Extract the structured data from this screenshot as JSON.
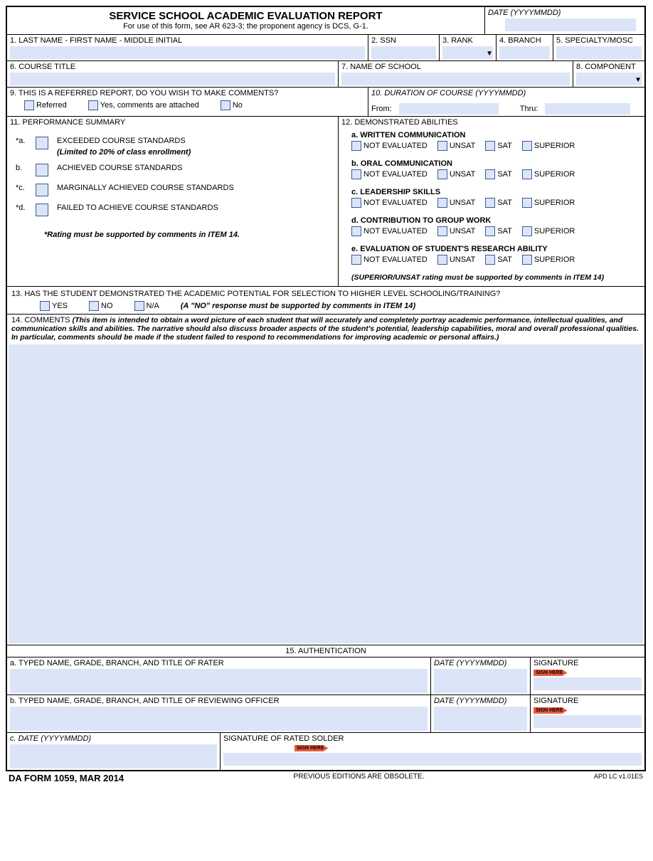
{
  "header": {
    "title": "SERVICE SCHOOL ACADEMIC EVALUATION REPORT",
    "subtitle": "For use of this form, see AR 623-3; the proponent agency is DCS, G-1.",
    "date_label": "DATE (YYYYMMDD)"
  },
  "f1": {
    "label": "1. LAST NAME - FIRST NAME - MIDDLE INITIAL"
  },
  "f2": {
    "label": "2. SSN"
  },
  "f3": {
    "label": "3. RANK"
  },
  "f4": {
    "label": "4. BRANCH"
  },
  "f5": {
    "label": "5. SPECIALTY/MOSC"
  },
  "f6": {
    "label": "6. COURSE TITLE"
  },
  "f7": {
    "label": "7. NAME OF SCHOOL"
  },
  "f8": {
    "label": "8. COMPONENT"
  },
  "f9": {
    "label": "9. THIS IS A REFERRED REPORT, DO YOU WISH TO MAKE COMMENTS?",
    "opt1": "Referred",
    "opt2": "Yes, comments are attached",
    "opt3": "No"
  },
  "f10": {
    "label": "10. DURATION OF COURSE (YYYYMMDD)",
    "from": "From:",
    "thru": "Thru:"
  },
  "f11": {
    "label": "11. PERFORMANCE SUMMARY",
    "a_marker": "*a.",
    "a_text": "EXCEEDED COURSE STANDARDS",
    "a_note": "(Limited to 20% of class enrollment)",
    "b_marker": "b.",
    "b_text": "ACHIEVED COURSE STANDARDS",
    "c_marker": "*c.",
    "c_text": "MARGINALLY ACHIEVED COURSE STANDARDS",
    "d_marker": "*d.",
    "d_text": "FAILED TO ACHIEVE COURSE STANDARDS",
    "note": "*Rating must be supported by comments in ITEM 14."
  },
  "f12": {
    "label": "12. DEMONSTRATED ABILITIES",
    "a": "a. WRITTEN COMMUNICATION",
    "b": "b. ORAL COMMUNICATION",
    "c": "c. LEADERSHIP SKILLS",
    "d": "d. CONTRIBUTION TO GROUP WORK",
    "e": "e. EVALUATION OF STUDENT'S RESEARCH ABILITY",
    "opt1": "NOT EVALUATED",
    "opt2": "UNSAT",
    "opt3": "SAT",
    "opt4": "SUPERIOR",
    "note": "(SUPERIOR/UNSAT rating must be supported by comments in ITEM 14)"
  },
  "f13": {
    "label": "13. HAS THE STUDENT DEMONSTRATED THE ACADEMIC POTENTIAL FOR SELECTION TO HIGHER LEVEL SCHOOLING/TRAINING?",
    "yes": "YES",
    "no": "NO",
    "na": "N/A",
    "note": "(A \"NO\" response must be supported by comments in ITEM 14)"
  },
  "f14": {
    "label": "14. COMMENTS",
    "note": "(This item is intended to obtain a word picture of each student that will accurately and completely portray academic performance, intellectual qualities, and communication skills and abilities. The narrative should also discuss broader aspects of the student's potential, leadership capabilities, moral and overall professional qualities. In particular, comments should be made if the student failed to respond to recommendations for improving academic or personal affairs.)"
  },
  "f15": {
    "label": "15. AUTHENTICATION",
    "a_label": "a. TYPED NAME, GRADE, BRANCH, AND TITLE OF RATER",
    "b_label": "b. TYPED NAME, GRADE, BRANCH, AND TITLE OF REVIEWING OFFICER",
    "c_date": "c. DATE (YYYYMMDD)",
    "c_sig": "SIGNATURE OF RATED SOLDER",
    "date": "DATE (YYYYMMDD)",
    "sig": "SIGNATURE",
    "flag": "SIGN HERE"
  },
  "footer": {
    "left": "DA FORM 1059, MAR 2014",
    "center": "PREVIOUS EDITIONS ARE OBSOLETE.",
    "right": "APD LC v1.01ES"
  }
}
